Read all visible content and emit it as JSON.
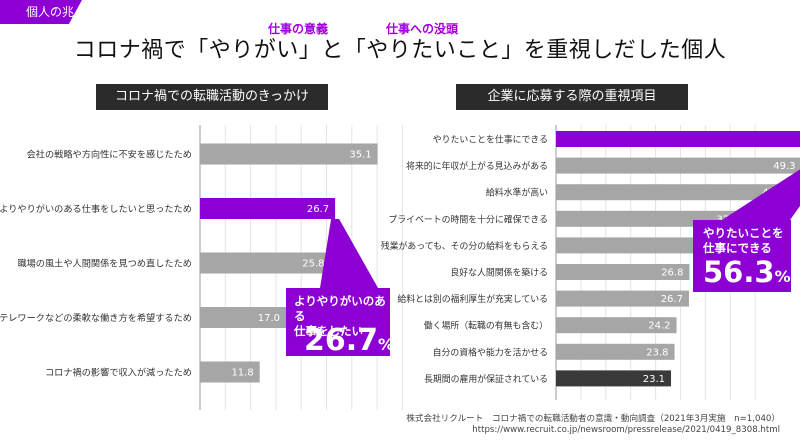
{
  "tag": "個人の兆し",
  "title": "コロナ禍で「やりがい」と「やりたいこと」を重視しだした個人",
  "annotations": {
    "left_sup": "仕事の意義",
    "right_sup": "仕事への没頭"
  },
  "colors": {
    "accent": "#8c00d4",
    "bar": "#a6a6a6",
    "bar_dark": "#3a3a3a",
    "header": "#2b2b2b"
  },
  "chart_data": [
    {
      "type": "bar",
      "orientation": "horizontal",
      "title": "コロナ禍での転職活動のきっかけ",
      "categories": [
        "会社の戦略や方向性に不安を感じたため",
        "よりやりがいのある仕事をしたいと思ったため",
        "職場の風土や人間関係を見つめ直したため",
        "テレワークなどの柔軟な働き方を希望するため",
        "コロナ禍の影響で収入が減ったため"
      ],
      "values": [
        35.1,
        26.7,
        25.8,
        17.0,
        11.8
      ],
      "value_labels": [
        "35.1",
        "26.7",
        "25.8",
        "17.0",
        "11.8"
      ],
      "highlight_index": 1,
      "xlim": [
        0,
        50
      ],
      "grid": true,
      "callout": {
        "label_line1": "よりやりがいのある",
        "label_line2": "仕事をしたい",
        "value": "26.7",
        "unit": "%"
      }
    },
    {
      "type": "bar",
      "orientation": "horizontal",
      "title": "企業に応募する際の重視項目",
      "categories": [
        "やりたいことを仕事にできる",
        "将来的に年収が上がる見込みがある",
        "給料水準が高い",
        "プライベートの時間を十分に確保できる",
        "残業があっても、その分の給料をもらえる",
        "良好な人間関係を築ける",
        "給料とは別の福利厚生が充実している",
        "働く場所（転職の有無も含む）",
        "自分の資格や能力を活かせる",
        "長期間の雇用が保証されている"
      ],
      "values": [
        56.3,
        49.3,
        47.1,
        37.9,
        36.1,
        26.8,
        26.7,
        24.2,
        23.8,
        23.1
      ],
      "value_labels": [
        "56.3",
        "49.3",
        "47.1",
        "37.9",
        "36.1",
        "26.8",
        "26.7",
        "24.2",
        "23.8",
        "23.1"
      ],
      "highlight_index": 0,
      "dark_index": 9,
      "xlim": [
        0,
        80
      ],
      "grid": true,
      "callout": {
        "label_line1": "やりたいことを",
        "label_line2": "仕事にできる",
        "value": "56.3",
        "unit": "%"
      }
    }
  ],
  "source": {
    "line1": "株式会社リクルート　コロナ禍での転職活動者の意識・動向調査（2021年3月実施　n=1,040）",
    "line2": "https://www.recruit.co.jp/newsroom/pressrelease/2021/0419_8308.html"
  }
}
